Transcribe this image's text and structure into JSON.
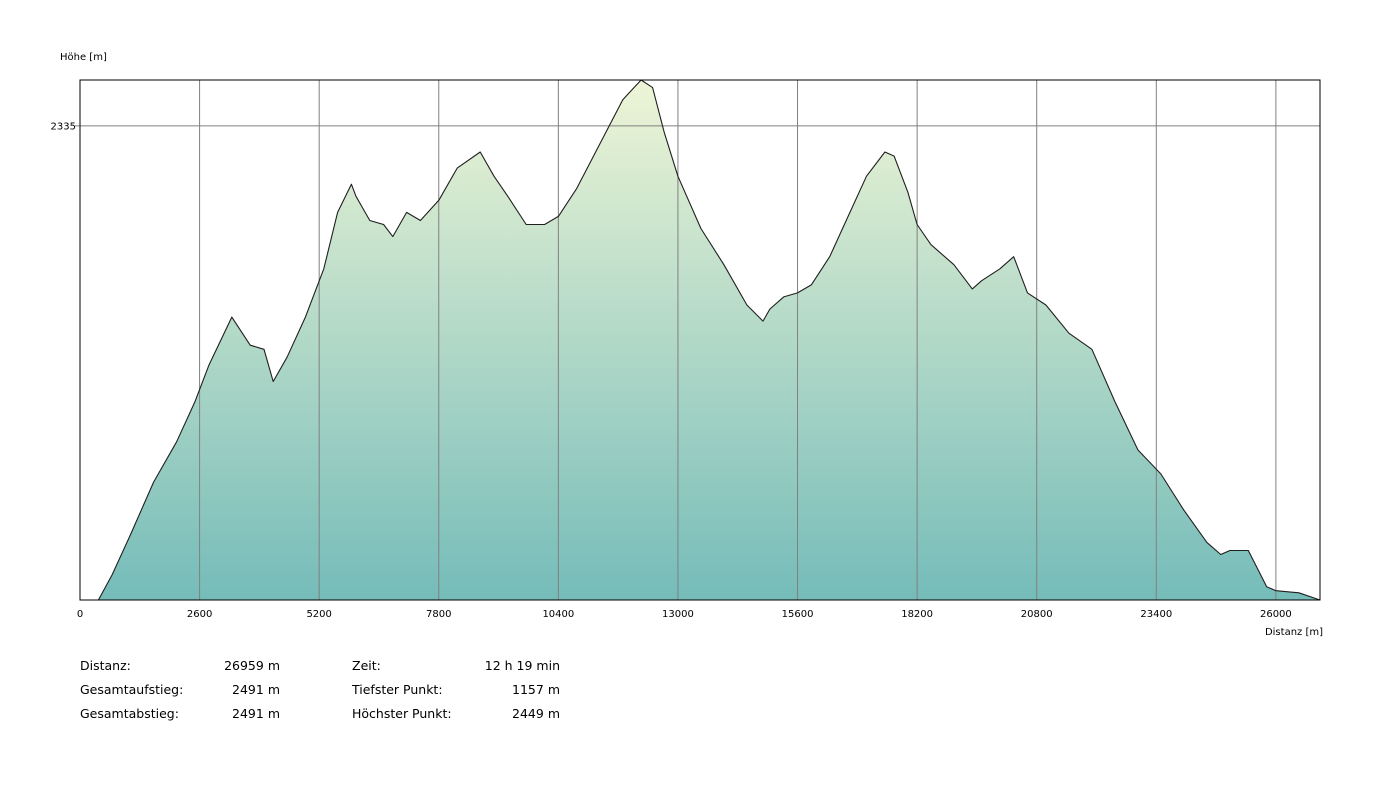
{
  "chart_data": {
    "type": "area",
    "title": "",
    "ylabel": "Höhe [m]",
    "xlabel": "Distanz [m]",
    "xlim": [
      0,
      26959
    ],
    "ylim": [
      1157,
      2449
    ],
    "y_ticks": [
      2335
    ],
    "x_ticks": [
      0,
      2600,
      5200,
      7800,
      10400,
      13000,
      15600,
      18200,
      20800,
      23400,
      26000
    ],
    "grid": true,
    "x": [
      0,
      400,
      700,
      1100,
      1600,
      2100,
      2500,
      2800,
      3300,
      3700,
      4000,
      4200,
      4500,
      4900,
      5300,
      5600,
      5900,
      6000,
      6100,
      6300,
      6600,
      6800,
      7100,
      7400,
      7800,
      8200,
      8700,
      9000,
      9300,
      9700,
      10100,
      10400,
      10800,
      11300,
      11800,
      12200,
      12450,
      12700,
      13000,
      13500,
      14000,
      14500,
      14850,
      15000,
      15300,
      15600,
      15900,
      16300,
      16700,
      17100,
      17500,
      17700,
      18000,
      18200,
      18500,
      19000,
      19400,
      19600,
      20000,
      20300,
      20600,
      21000,
      21500,
      22000,
      22500,
      23000,
      23500,
      24000,
      24500,
      24800,
      25000,
      25400,
      25800,
      26000,
      26500,
      26959
    ],
    "values": [
      1157,
      1157,
      1220,
      1320,
      1450,
      1550,
      1650,
      1740,
      1860,
      1790,
      1780,
      1700,
      1760,
      1860,
      1980,
      2120,
      2190,
      2160,
      2140,
      2100,
      2090,
      2060,
      2120,
      2100,
      2150,
      2230,
      2270,
      2210,
      2160,
      2090,
      2090,
      2110,
      2180,
      2290,
      2400,
      2449,
      2430,
      2320,
      2210,
      2080,
      1990,
      1890,
      1850,
      1880,
      1910,
      1920,
      1940,
      2010,
      2110,
      2210,
      2270,
      2260,
      2170,
      2090,
      2040,
      1990,
      1930,
      1950,
      1980,
      2010,
      1920,
      1890,
      1820,
      1780,
      1650,
      1530,
      1470,
      1380,
      1300,
      1270,
      1280,
      1280,
      1190,
      1180,
      1175,
      1157
    ]
  },
  "stats": {
    "left": [
      {
        "label": "Distanz:",
        "value": "26959 m"
      },
      {
        "label": "Gesamtaufstieg:",
        "value": "2491 m"
      },
      {
        "label": "Gesamtabstieg:",
        "value": "2491 m"
      }
    ],
    "right": [
      {
        "label": "Zeit:",
        "value": "12 h 19 min"
      },
      {
        "label": "Tiefster Punkt:",
        "value": "1157 m"
      },
      {
        "label": "Höchster Punkt:",
        "value": "2449 m"
      }
    ]
  },
  "colors": {
    "fill_top": "#eef5d6",
    "fill_bottom": "#75bcb9",
    "line": "#1f1f1f",
    "grid": "#808080",
    "frame": "#000000"
  }
}
